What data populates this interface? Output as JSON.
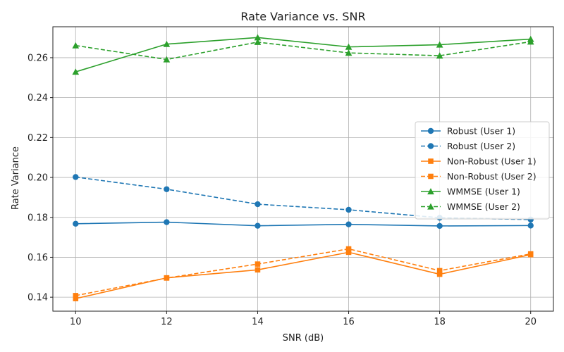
{
  "chart_data": {
    "type": "line",
    "title": "Rate Variance vs. SNR",
    "xlabel": "SNR (dB)",
    "ylabel": "Rate Variance",
    "x": [
      10,
      12,
      14,
      16,
      18,
      20
    ],
    "xlim": [
      9.5,
      20.5
    ],
    "ylim": [
      0.133,
      0.2755
    ],
    "xticks": [
      10,
      12,
      14,
      16,
      18,
      20
    ],
    "yticks": [
      0.14,
      0.16,
      0.18,
      0.2,
      0.22,
      0.24,
      0.26
    ],
    "ytick_labels": [
      "0.14",
      "0.16",
      "0.18",
      "0.20",
      "0.22",
      "0.24",
      "0.26"
    ],
    "grid": true,
    "legend_position": "center-right",
    "series": [
      {
        "name": "Robust (User 1)",
        "color": "#1f77b4",
        "marker": "circle",
        "linestyle": "solid",
        "values": [
          0.1768,
          0.1776,
          0.1758,
          0.1765,
          0.1757,
          0.1759
        ]
      },
      {
        "name": "Robust (User 2)",
        "color": "#1f77b4",
        "marker": "circle",
        "linestyle": "dashed",
        "values": [
          0.2002,
          0.1941,
          0.1866,
          0.1838,
          0.1798,
          0.1789
        ]
      },
      {
        "name": "Non-Robust (User 1)",
        "color": "#ff7f0e",
        "marker": "square",
        "linestyle": "solid",
        "values": [
          0.1393,
          0.1497,
          0.1537,
          0.1625,
          0.1515,
          0.1613
        ]
      },
      {
        "name": "Non-Robust (User 2)",
        "color": "#ff7f0e",
        "marker": "square",
        "linestyle": "dashed",
        "values": [
          0.1408,
          0.1496,
          0.1566,
          0.1642,
          0.1533,
          0.1617
        ]
      },
      {
        "name": "WMMSE (User 1)",
        "color": "#2ca02c",
        "marker": "triangle",
        "linestyle": "solid",
        "values": [
          0.2529,
          0.2668,
          0.2701,
          0.2654,
          0.2665,
          0.2693
        ]
      },
      {
        "name": "WMMSE (User 2)",
        "color": "#2ca02c",
        "marker": "triangle",
        "linestyle": "dashed",
        "values": [
          0.2661,
          0.2591,
          0.2678,
          0.2624,
          0.261,
          0.268
        ]
      }
    ]
  }
}
